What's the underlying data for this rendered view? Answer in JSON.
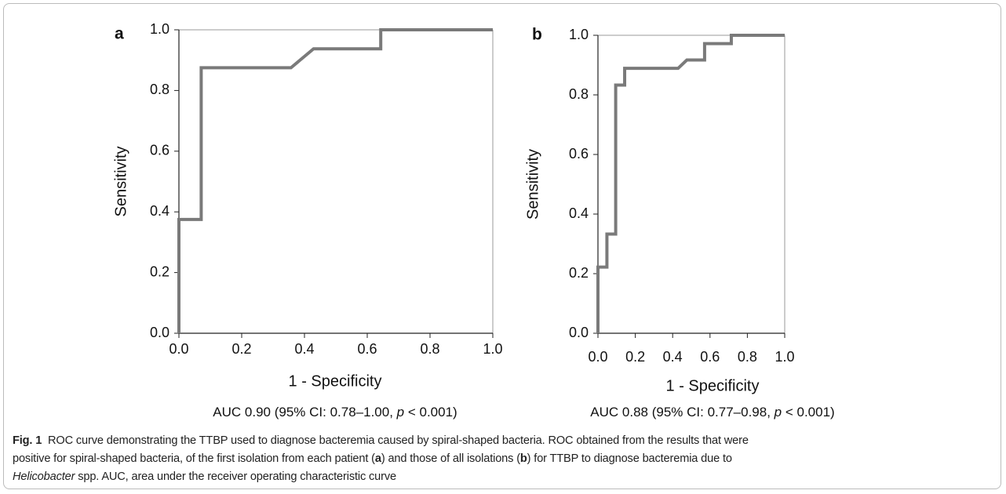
{
  "chart_data": [
    {
      "type": "line",
      "panel_label": "a",
      "xlabel": "1 - Specificity",
      "ylabel": "Sensitivity",
      "subtitle": [
        "AUC 0.90 (95% CI: 0.78–1.00, ",
        "p",
        " < 0.001)"
      ],
      "x": [
        0,
        0,
        0.071,
        0.071,
        0.357,
        0.429,
        0.643,
        0.643,
        1
      ],
      "values": [
        0,
        0.375,
        0.375,
        0.875,
        0.875,
        0.9375,
        0.9375,
        1,
        1
      ],
      "color": "#7a7a7a",
      "xlim": [
        0,
        1
      ],
      "ylim": [
        0,
        1
      ],
      "xticks": [
        {
          "value": 0,
          "label": "0.0"
        },
        0.2,
        0.4,
        0.6,
        0.8,
        {
          "value": 1,
          "label": "1.0"
        }
      ],
      "yticks": [
        {
          "value": 0,
          "label": "0.0"
        },
        0.2,
        0.4,
        0.6,
        0.8,
        {
          "value": 1,
          "label": "1.0"
        }
      ]
    },
    {
      "type": "line",
      "panel_label": "b",
      "xlabel": "1 - Specificity",
      "ylabel": "Sensitivity",
      "subtitle": [
        "AUC 0.88 (95% CI: 0.77–0.98, ",
        "p",
        " < 0.001)"
      ],
      "x": [
        0,
        0,
        0.048,
        0.048,
        0.095,
        0.095,
        0.143,
        0.143,
        0.429,
        0.476,
        0.571,
        0.571,
        0.714,
        0.714,
        1
      ],
      "values": [
        0,
        0.222,
        0.222,
        0.333,
        0.333,
        0.833,
        0.833,
        0.889,
        0.889,
        0.917,
        0.917,
        0.972,
        0.972,
        1,
        1
      ],
      "color": "#7a7a7a",
      "xlim": [
        0,
        1
      ],
      "ylim": [
        0,
        1
      ],
      "xticks": [
        {
          "value": 0,
          "label": "0.0"
        },
        0.2,
        0.4,
        0.6,
        0.8,
        {
          "value": 1,
          "label": "1.0"
        }
      ],
      "yticks": [
        {
          "value": 0,
          "label": "0.0"
        },
        0.2,
        0.4,
        0.6,
        0.8,
        {
          "value": 1,
          "label": "1.0"
        }
      ]
    }
  ],
  "caption": {
    "lines": [
      [
        "Fig. 1",
        "  ROC curve demonstrating the TTBP used to diagnose bacteremia caused by spiral-shaped bacteria. ROC obtained from the results that were"
      ],
      [
        "positive for spiral-shaped bacteria, of the first isolation from each patient (",
        "a",
        ") and those of all isolations (",
        "b",
        ") for TTBP to diagnose bacteremia due to"
      ],
      [
        "Helicobacter",
        " spp. AUC, area under the receiver operating characteristic curve"
      ]
    ]
  }
}
